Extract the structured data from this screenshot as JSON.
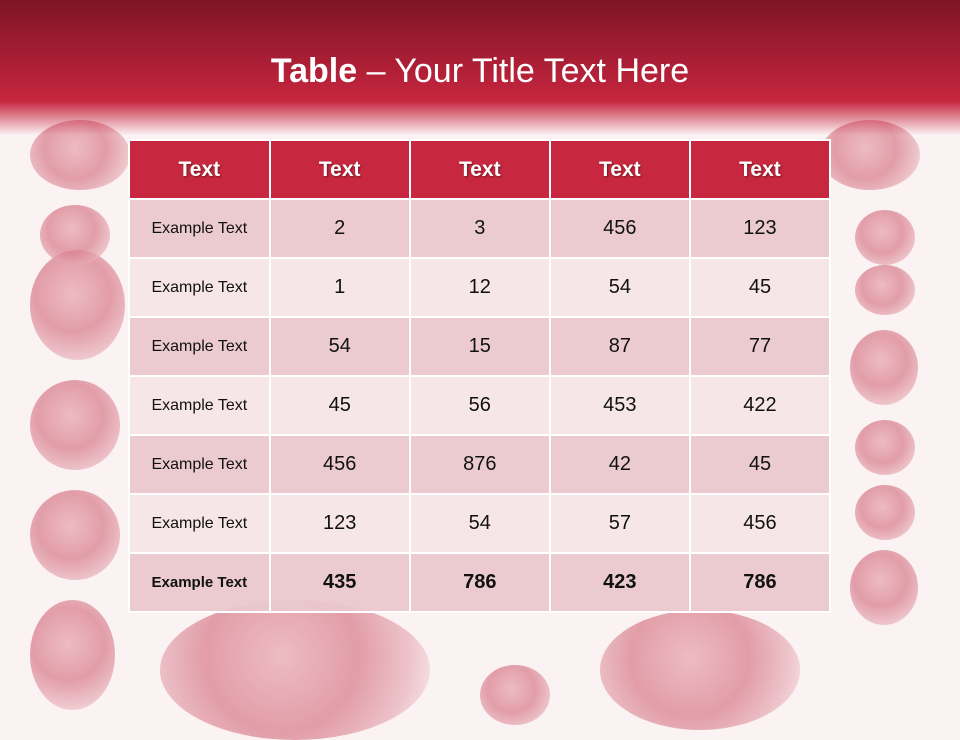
{
  "title": {
    "bold": "Table",
    "rest": " – Your Title Text Here"
  },
  "colors": {
    "header": "#c8283f",
    "row_dark": "#eac8cd",
    "row_light": "#f6e5e7",
    "title_bar": "#a51d33"
  },
  "table": {
    "headers": [
      "Text",
      "Text",
      "Text",
      "Text",
      "Text"
    ],
    "rows": [
      [
        "Example Text",
        "2",
        "3",
        "456",
        "123"
      ],
      [
        "Example Text",
        "1",
        "12",
        "54",
        "45"
      ],
      [
        "Example Text",
        "54",
        "15",
        "87",
        "77"
      ],
      [
        "Example Text",
        "45",
        "56",
        "453",
        "422"
      ],
      [
        "Example Text",
        "456",
        "876",
        "42",
        "45"
      ],
      [
        "Example Text",
        "123",
        "54",
        "57",
        "456"
      ],
      [
        "Example Text",
        "435",
        "786",
        "423",
        "786"
      ]
    ]
  }
}
